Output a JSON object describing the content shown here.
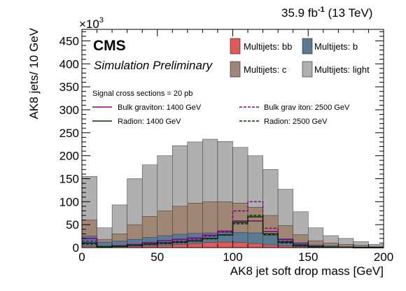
{
  "chart_data": {
    "type": "bar",
    "style": "stacked-histogram",
    "lumi_label": "35.9 fb",
    "lumi_exp": "-1",
    "energy_label": "(13 TeV)",
    "cms_label": "CMS",
    "sim_label": "Simulation Preliminary",
    "xlabel": "AK8 jet soft drop mass [GeV]",
    "ylabel": "AK8 jets/ 10 GeV",
    "y_multiplier_prefix": "×10",
    "y_multiplier_exp": "3",
    "xlim": [
      0,
      200
    ],
    "ylim": [
      0,
      475
    ],
    "xticks": [
      0,
      50,
      100,
      150,
      200
    ],
    "yticks": [
      0,
      50,
      100,
      150,
      200,
      250,
      300,
      350,
      400,
      450
    ],
    "bin_edges": [
      0,
      10,
      20,
      30,
      40,
      50,
      60,
      70,
      80,
      90,
      100,
      110,
      120,
      130,
      140,
      150,
      160,
      170,
      180,
      190,
      200
    ],
    "stack_order": [
      "bb",
      "b",
      "c",
      "light"
    ],
    "stack_totals": {
      "bb": [
        3,
        1,
        2,
        3,
        4,
        5,
        7,
        9,
        11,
        12,
        11,
        9,
        6,
        4,
        2,
        1,
        1,
        0.5,
        0.5,
        0.5
      ],
      "b": [
        25,
        12,
        14,
        18,
        22,
        26,
        29,
        31,
        32,
        33,
        33,
        32,
        27,
        19,
        11,
        6,
        4,
        2,
        1.5,
        1
      ],
      "c": [
        60,
        18,
        30,
        50,
        68,
        80,
        90,
        97,
        100,
        100,
        97,
        88,
        70,
        48,
        28,
        15,
        10,
        7,
        5,
        3
      ],
      "light": [
        155,
        43,
        93,
        150,
        180,
        200,
        222,
        230,
        236,
        231,
        218,
        200,
        170,
        127,
        78,
        43,
        26,
        20,
        13,
        7
      ]
    },
    "series": [
      {
        "name": "Multijets: bb",
        "key": "bb",
        "color": "#e05a5a"
      },
      {
        "name": "Multijets: b",
        "key": "b",
        "color": "#5a7a94"
      },
      {
        "name": "Multijets: c",
        "key": "c",
        "color": "#a08675"
      },
      {
        "name": "Multijets: light",
        "key": "light",
        "color": "#b0b0b0"
      }
    ],
    "signals_header": "Signal cross sections = 20 pb",
    "signals": [
      {
        "name": "Bulk graviton: 1400 GeV",
        "color": "#800080",
        "dash": "solid",
        "values": [
          20,
          2,
          4,
          7,
          11,
          15,
          18,
          21,
          27,
          36,
          58,
          58,
          35,
          18,
          8,
          3,
          1,
          0.5,
          0,
          0
        ]
      },
      {
        "name": "Bulk grav iton: 2500 GeV",
        "color": "#800080",
        "dash": "dashed",
        "values": [
          14,
          2,
          3,
          5,
          8,
          11,
          14,
          18,
          25,
          34,
          80,
          100,
          42,
          14,
          5,
          2,
          1,
          0.5,
          0,
          0
        ]
      },
      {
        "name": "Radion: 1400 GeV",
        "color": "#003300",
        "dash": "solid",
        "values": [
          10,
          2,
          3,
          5,
          8,
          10,
          12,
          15,
          20,
          28,
          55,
          67,
          30,
          12,
          5,
          2,
          1,
          0.5,
          0,
          0
        ]
      },
      {
        "name": "Radion: 2500 GeV",
        "color": "#003300",
        "dash": "dashed",
        "values": [
          8,
          2,
          3,
          5,
          7,
          9,
          11,
          14,
          19,
          27,
          52,
          70,
          28,
          10,
          4,
          2,
          1,
          0.5,
          0,
          0
        ]
      }
    ]
  }
}
